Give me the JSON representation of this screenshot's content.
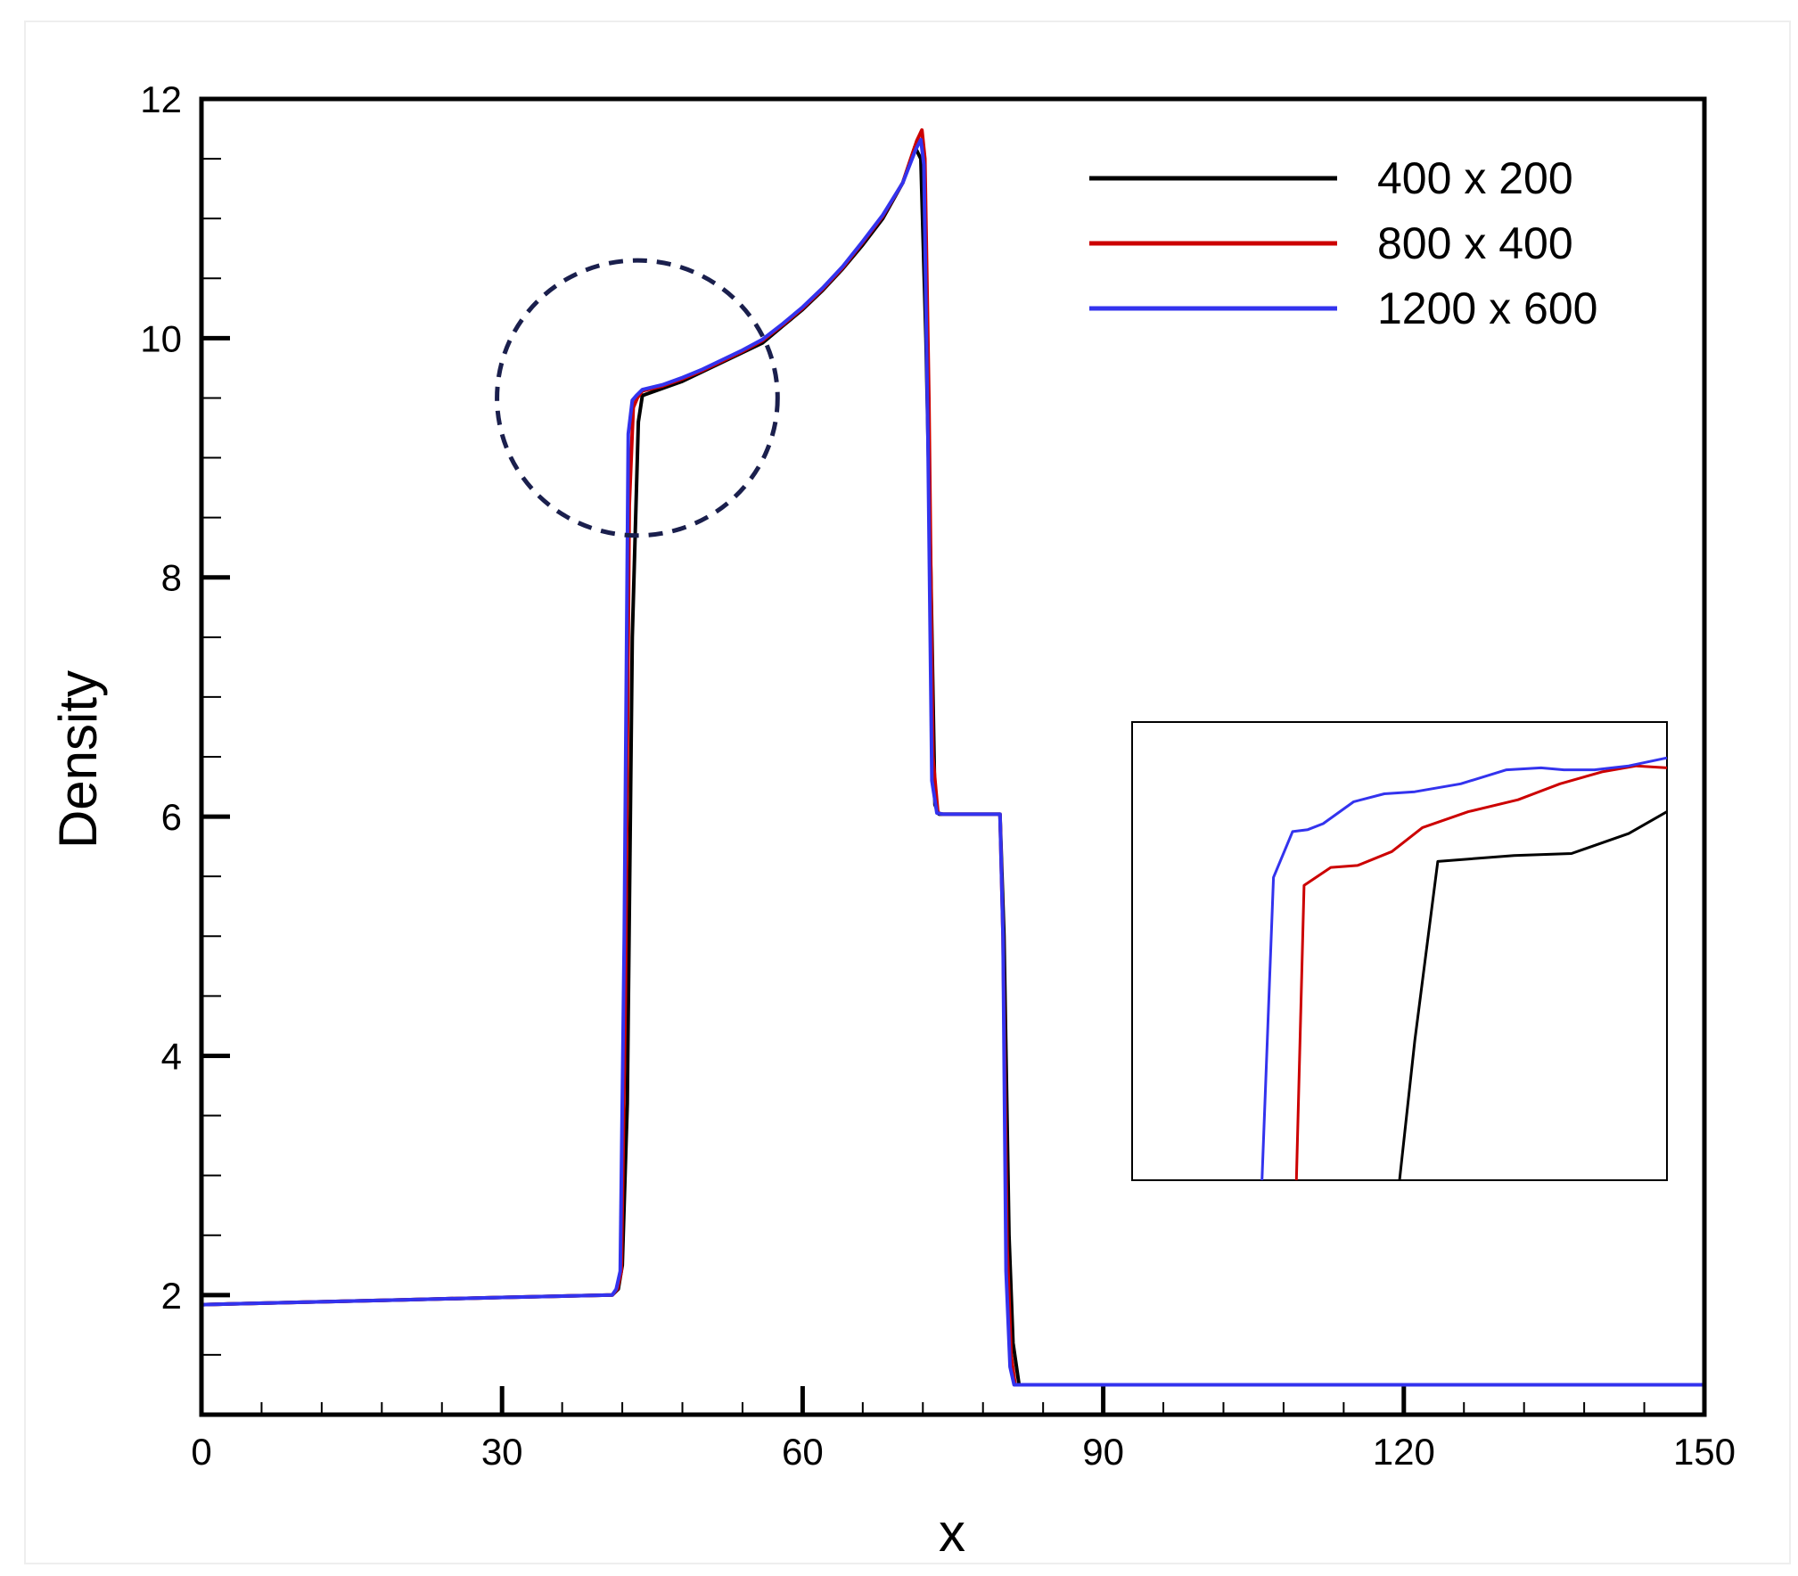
{
  "chart_data": {
    "type": "line",
    "title": "",
    "xlabel": "x",
    "ylabel": "Density",
    "xlim": [
      0,
      150
    ],
    "ylim": [
      1,
      12
    ],
    "x_ticks": [
      0,
      30,
      60,
      90,
      120,
      150
    ],
    "x_tick_labels": [
      "0",
      "30",
      "60",
      "90",
      "120",
      "150"
    ],
    "y_ticks": [
      2,
      4,
      6,
      8,
      10,
      12
    ],
    "y_tick_labels": [
      "2",
      "4",
      "6",
      "8",
      "10",
      "12"
    ],
    "x_minor_step": 6,
    "y_minor_step": 0.5,
    "grid": false,
    "legend_position": "top-right",
    "series": [
      {
        "name": "400 x 200",
        "color": "#000000",
        "x": [
          0,
          10,
          20,
          30,
          41,
          41.6,
          42.0,
          42.5,
          43.0,
          43.6,
          44.0,
          46,
          48,
          50,
          52,
          54,
          56,
          58,
          60,
          62,
          64,
          66,
          68,
          70,
          71.2,
          71.8,
          72.3,
          72.8,
          73.2,
          73.6,
          74,
          76,
          78,
          79.7,
          80.1,
          80.6,
          81.0,
          81.6,
          90,
          100,
          110,
          120,
          130,
          140,
          150
        ],
        "y": [
          1.92,
          1.94,
          1.96,
          1.98,
          2.0,
          2.05,
          2.25,
          3.6,
          7.5,
          9.3,
          9.52,
          9.58,
          9.64,
          9.72,
          9.8,
          9.88,
          9.96,
          10.1,
          10.24,
          10.4,
          10.58,
          10.78,
          11.0,
          11.3,
          11.6,
          11.5,
          10.0,
          8.0,
          6.1,
          6.02,
          6.02,
          6.02,
          6.02,
          6.02,
          5.0,
          2.5,
          1.6,
          1.25,
          1.25,
          1.25,
          1.25,
          1.25,
          1.25,
          1.25,
          1.25
        ]
      },
      {
        "name": "800 x 400",
        "color": "#cc0000",
        "x": [
          0,
          10,
          20,
          30,
          41,
          41.5,
          41.9,
          42.3,
          42.7,
          43.1,
          43.5,
          44,
          46,
          48,
          50,
          52,
          54,
          56,
          58,
          60,
          62,
          64,
          66,
          68,
          70,
          71.4,
          71.9,
          72.2,
          72.6,
          73.0,
          73.5,
          74,
          76,
          78,
          79.7,
          80.0,
          80.4,
          80.8,
          81.2,
          90,
          100,
          110,
          120,
          130,
          140,
          150
        ],
        "y": [
          1.92,
          1.94,
          1.96,
          1.98,
          2.0,
          2.05,
          2.2,
          4.5,
          8.6,
          9.42,
          9.5,
          9.56,
          9.6,
          9.66,
          9.73,
          9.81,
          9.89,
          9.98,
          10.11,
          10.25,
          10.41,
          10.59,
          10.8,
          11.02,
          11.3,
          11.65,
          11.74,
          11.5,
          9.5,
          6.5,
          6.03,
          6.02,
          6.02,
          6.02,
          6.02,
          5.0,
          2.4,
          1.5,
          1.25,
          1.25,
          1.25,
          1.25,
          1.25,
          1.25,
          1.25,
          1.25
        ]
      },
      {
        "name": "1200 x 600",
        "color": "#3333ee",
        "x": [
          0,
          10,
          20,
          30,
          41,
          41.4,
          41.8,
          42.2,
          42.6,
          43.0,
          43.4,
          44,
          46,
          48,
          50,
          52,
          54,
          56,
          58,
          60,
          62,
          64,
          66,
          68,
          70,
          71.3,
          71.8,
          72.1,
          72.5,
          72.9,
          73.4,
          74,
          76,
          78,
          79.7,
          80.0,
          80.3,
          80.7,
          81.1,
          90,
          100,
          110,
          120,
          130,
          140,
          150
        ],
        "y": [
          1.92,
          1.94,
          1.96,
          1.98,
          2.0,
          2.05,
          2.2,
          5.0,
          9.2,
          9.48,
          9.52,
          9.57,
          9.61,
          9.67,
          9.74,
          9.82,
          9.9,
          9.99,
          10.12,
          10.26,
          10.42,
          10.6,
          10.81,
          11.03,
          11.3,
          11.58,
          11.66,
          11.45,
          9.2,
          6.3,
          6.03,
          6.02,
          6.02,
          6.02,
          6.02,
          5.0,
          2.2,
          1.4,
          1.25,
          1.25,
          1.25,
          1.25,
          1.25,
          1.25,
          1.25,
          1.25
        ]
      }
    ],
    "annotations": [
      {
        "type": "dashed-circle",
        "center": [
          43.5,
          9.5
        ],
        "radius_x": 14,
        "radius_y": 1.15,
        "color": "#1a1f4d"
      }
    ],
    "inset": {
      "description": "zoom of the highlighted region",
      "xlim": [
        43,
        57
      ],
      "ylim": [
        8.3,
        10.6
      ],
      "series": [
        {
          "name": "400 x 200",
          "color": "#000000",
          "x": [
            50.0,
            50.4,
            51.0,
            53.0,
            54.5,
            56.0,
            57.0
          ],
          "y": [
            8.3,
            9.0,
            9.9,
            9.93,
            9.94,
            10.04,
            10.15
          ]
        },
        {
          "name": "800 x 400",
          "color": "#cc0000",
          "x": [
            47.3,
            47.5,
            48.2,
            48.9,
            49.8,
            50.6,
            51.8,
            53.1,
            54.2,
            55.3,
            56.2,
            57.0
          ],
          "y": [
            8.3,
            9.78,
            9.87,
            9.88,
            9.95,
            10.07,
            10.15,
            10.21,
            10.29,
            10.35,
            10.38,
            10.37
          ]
        },
        {
          "name": "1200 x 600",
          "color": "#3333ee",
          "x": [
            46.4,
            46.7,
            47.2,
            47.6,
            48.0,
            48.8,
            49.6,
            50.4,
            51.6,
            52.8,
            53.7,
            54.3,
            55.1,
            56.0,
            57.0
          ],
          "y": [
            8.3,
            9.82,
            10.05,
            10.06,
            10.09,
            10.2,
            10.24,
            10.25,
            10.29,
            10.36,
            10.37,
            10.36,
            10.36,
            10.38,
            10.42
          ]
        }
      ]
    }
  }
}
